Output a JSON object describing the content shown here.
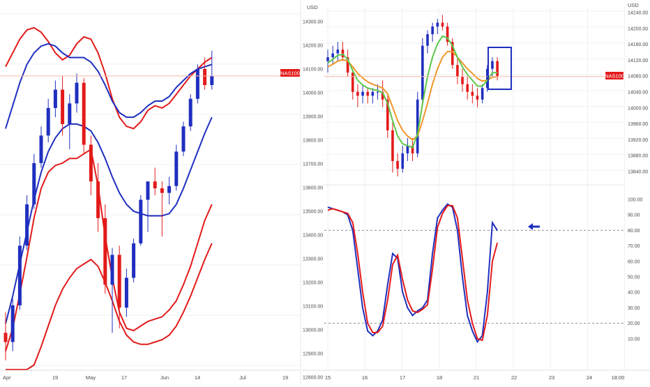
{
  "colors": {
    "up": "#1f2fbf",
    "down": "#e31a1a",
    "band_blue": "#1f2fbf",
    "band_red": "#e31a1a",
    "ema_orange": "#f0962a",
    "ema_green": "#5cc84a",
    "price_line": "#f7b9a6",
    "marker_bg": "#e31a1a",
    "rect": "#1f2fbf",
    "grid": "#eef0f3",
    "axis_text": "#4a4a4a"
  },
  "left_chart": {
    "price_label": "NAS100",
    "x_ticks": [
      "Apr",
      "19",
      "May",
      "17",
      "Jun",
      "14",
      "Jul",
      "19"
    ]
  },
  "chart_data": [
    {
      "type": "candlestick",
      "title": "",
      "xlabel": "",
      "ylabel": "",
      "x_ticks": [
        "Apr",
        "19",
        "May",
        "17",
        "Jun",
        "14",
        "Jul",
        "19"
      ],
      "ylim": [
        12800,
        14350
      ],
      "current_price": 14080,
      "current_price_label": "NAS100",
      "candles": [
        {
          "o": 12960,
          "h": 13050,
          "l": 12840,
          "c": 12920
        },
        {
          "o": 12920,
          "h": 13110,
          "l": 12880,
          "c": 13080
        },
        {
          "o": 13080,
          "h": 13380,
          "l": 13060,
          "c": 13340
        },
        {
          "o": 13340,
          "h": 13560,
          "l": 13320,
          "c": 13520
        },
        {
          "o": 13520,
          "h": 13740,
          "l": 13500,
          "c": 13700
        },
        {
          "o": 13700,
          "h": 13860,
          "l": 13680,
          "c": 13820
        },
        {
          "o": 13820,
          "h": 13980,
          "l": 13790,
          "c": 13940
        },
        {
          "o": 13940,
          "h": 14060,
          "l": 13900,
          "c": 14020
        },
        {
          "o": 14020,
          "h": 14080,
          "l": 13820,
          "c": 13870
        },
        {
          "o": 13870,
          "h": 14000,
          "l": 13760,
          "c": 13960
        },
        {
          "o": 13960,
          "h": 14090,
          "l": 13920,
          "c": 14050
        },
        {
          "o": 14050,
          "h": 14070,
          "l": 13740,
          "c": 13780
        },
        {
          "o": 13780,
          "h": 13820,
          "l": 13560,
          "c": 13620
        },
        {
          "o": 13620,
          "h": 13700,
          "l": 13400,
          "c": 13460
        },
        {
          "o": 13460,
          "h": 13520,
          "l": 13130,
          "c": 13170
        },
        {
          "o": 13170,
          "h": 13330,
          "l": 12960,
          "c": 13300
        },
        {
          "o": 13300,
          "h": 13340,
          "l": 12980,
          "c": 13070
        },
        {
          "o": 13070,
          "h": 13240,
          "l": 13030,
          "c": 13200
        },
        {
          "o": 13200,
          "h": 13370,
          "l": 13180,
          "c": 13350
        },
        {
          "o": 13350,
          "h": 13560,
          "l": 13340,
          "c": 13540
        },
        {
          "o": 13540,
          "h": 13620,
          "l": 13400,
          "c": 13620
        },
        {
          "o": 13620,
          "h": 13680,
          "l": 13560,
          "c": 13590
        },
        {
          "o": 13590,
          "h": 13620,
          "l": 13380,
          "c": 13570
        },
        {
          "o": 13570,
          "h": 13640,
          "l": 13520,
          "c": 13600
        },
        {
          "o": 13600,
          "h": 13780,
          "l": 13580,
          "c": 13750
        },
        {
          "o": 13750,
          "h": 13880,
          "l": 13730,
          "c": 13860
        },
        {
          "o": 13860,
          "h": 14000,
          "l": 13840,
          "c": 13980
        },
        {
          "o": 13980,
          "h": 14130,
          "l": 13960,
          "c": 14110
        },
        {
          "o": 14110,
          "h": 14160,
          "l": 14020,
          "c": 14040
        },
        {
          "o": 14040,
          "h": 14190,
          "l": 14020,
          "c": 14080
        }
      ],
      "bands": {
        "outer_upper": [
          14120,
          14180,
          14240,
          14280,
          14290,
          14270,
          14230,
          14180,
          14150,
          14170,
          14220,
          14250,
          14240,
          14180,
          14090,
          13980,
          13900,
          13860,
          13850,
          13880,
          13930,
          13950,
          13940,
          13960,
          14000,
          14040,
          14080,
          14110,
          14140,
          14160
        ],
        "middle": [
          13000,
          13120,
          13260,
          13400,
          13540,
          13660,
          13750,
          13810,
          13850,
          13870,
          13870,
          13860,
          13840,
          13790,
          13720,
          13640,
          13570,
          13520,
          13490,
          13480,
          13470,
          13470,
          13470,
          13480,
          13520,
          13590,
          13670,
          13750,
          13830,
          13900
        ],
        "outer_lower": [
          12880,
          12980,
          13130,
          13290,
          13460,
          13590,
          13660,
          13690,
          13700,
          13720,
          13720,
          13740,
          13760,
          13600,
          13380,
          13200,
          13050,
          12980,
          12970,
          12990,
          13010,
          13020,
          13030,
          13060,
          13100,
          13170,
          13250,
          13350,
          13450,
          13520
        ],
        "inner_upper": [
          13850,
          13950,
          14050,
          14130,
          14180,
          14210,
          14220,
          14210,
          14180,
          14160,
          14160,
          14160,
          14140,
          14100,
          14040,
          13970,
          13920,
          13900,
          13900,
          13920,
          13950,
          13970,
          13970,
          13990,
          14030,
          14060,
          14090,
          14110,
          14120,
          14130
        ],
        "inner_lower": [
          12800,
          12800,
          12800,
          12800,
          12820,
          12900,
          12990,
          13080,
          13150,
          13200,
          13240,
          13260,
          13280,
          13250,
          13180,
          13100,
          13010,
          12950,
          12920,
          12910,
          12910,
          12920,
          12930,
          12950,
          12990,
          13050,
          13120,
          13200,
          13280,
          13350
        ]
      }
    },
    {
      "type": "candlestick",
      "title": "",
      "ylabel": "USD",
      "x_ticks": [
        "15",
        "16",
        "17",
        "18",
        "21",
        "22",
        "23",
        "24",
        "18:00"
      ],
      "y_ticks_left": [
        "14300.00",
        "14200.00",
        "14100.00",
        "14000.00",
        "13900.00",
        "13800.00",
        "13700.00",
        "13600.00",
        "13500.00",
        "13400.00",
        "13300.00",
        "13200.00",
        "13100.00",
        "13000.00",
        "12900.00",
        "12800.00"
      ],
      "y_ticks_right": [
        "14240.00",
        "14200.00",
        "14160.00",
        "14120.00",
        "14080.00",
        "14040.00",
        "14000.00",
        "13960.00",
        "13920.00",
        "13880.00",
        "13840.00"
      ],
      "ylim": [
        13820,
        14250
      ],
      "current_price_label": "NAS100",
      "candles": [
        {
          "o": 14120,
          "h": 14150,
          "l": 14090,
          "c": 14130
        },
        {
          "o": 14130,
          "h": 14160,
          "l": 14110,
          "c": 14140
        },
        {
          "o": 14140,
          "h": 14170,
          "l": 14120,
          "c": 14150
        },
        {
          "o": 14150,
          "h": 14170,
          "l": 14120,
          "c": 14130
        },
        {
          "o": 14130,
          "h": 14150,
          "l": 14080,
          "c": 14090
        },
        {
          "o": 14090,
          "h": 14100,
          "l": 14020,
          "c": 14040
        },
        {
          "o": 14040,
          "h": 14060,
          "l": 14000,
          "c": 14030
        },
        {
          "o": 14030,
          "h": 14060,
          "l": 14010,
          "c": 14040
        },
        {
          "o": 14040,
          "h": 14050,
          "l": 14010,
          "c": 14030
        },
        {
          "o": 14030,
          "h": 14050,
          "l": 14010,
          "c": 14040
        },
        {
          "o": 14040,
          "h": 14060,
          "l": 14020,
          "c": 14040
        },
        {
          "o": 14040,
          "h": 14070,
          "l": 14000,
          "c": 14020
        },
        {
          "o": 14020,
          "h": 14030,
          "l": 13920,
          "c": 13940
        },
        {
          "o": 13940,
          "h": 13960,
          "l": 13830,
          "c": 13860
        },
        {
          "o": 13860,
          "h": 13880,
          "l": 13820,
          "c": 13840
        },
        {
          "o": 13840,
          "h": 13900,
          "l": 13830,
          "c": 13880
        },
        {
          "o": 13880,
          "h": 13920,
          "l": 13860,
          "c": 13900
        },
        {
          "o": 13900,
          "h": 13920,
          "l": 13860,
          "c": 13880
        },
        {
          "o": 13880,
          "h": 14040,
          "l": 13870,
          "c": 14020
        },
        {
          "o": 14020,
          "h": 14180,
          "l": 14010,
          "c": 14160
        },
        {
          "o": 14160,
          "h": 14200,
          "l": 14140,
          "c": 14190
        },
        {
          "o": 14190,
          "h": 14220,
          "l": 14170,
          "c": 14210
        },
        {
          "o": 14210,
          "h": 14230,
          "l": 14190,
          "c": 14220
        },
        {
          "o": 14220,
          "h": 14240,
          "l": 14200,
          "c": 14210
        },
        {
          "o": 14210,
          "h": 14220,
          "l": 14160,
          "c": 14170
        },
        {
          "o": 14170,
          "h": 14180,
          "l": 14100,
          "c": 14110
        },
        {
          "o": 14110,
          "h": 14130,
          "l": 14060,
          "c": 14080
        },
        {
          "o": 14080,
          "h": 14100,
          "l": 14040,
          "c": 14060
        },
        {
          "o": 14060,
          "h": 14080,
          "l": 14020,
          "c": 14040
        },
        {
          "o": 14040,
          "h": 14060,
          "l": 14010,
          "c": 14030
        },
        {
          "o": 14030,
          "h": 14050,
          "l": 14000,
          "c": 14020
        },
        {
          "o": 14020,
          "h": 14060,
          "l": 14010,
          "c": 14050
        },
        {
          "o": 14050,
          "h": 14110,
          "l": 14040,
          "c": 14100
        },
        {
          "o": 14100,
          "h": 14130,
          "l": 14080,
          "c": 14120
        },
        {
          "o": 14120,
          "h": 14130,
          "l": 14070,
          "c": 14080
        }
      ],
      "ema_fast": [
        14115,
        14125,
        14135,
        14138,
        14125,
        14095,
        14070,
        14058,
        14050,
        14046,
        14044,
        14038,
        14010,
        13965,
        13925,
        13905,
        13900,
        13895,
        13930,
        14010,
        14080,
        14130,
        14165,
        14185,
        14180,
        14160,
        14130,
        14105,
        14085,
        14070,
        14055,
        14055,
        14070,
        14090,
        14090
      ],
      "ema_slow": [
        14105,
        14112,
        14120,
        14124,
        14120,
        14105,
        14088,
        14076,
        14066,
        14060,
        14055,
        14050,
        14035,
        14000,
        13965,
        13940,
        13925,
        13915,
        13925,
        13965,
        14010,
        14060,
        14100,
        14130,
        14145,
        14145,
        14130,
        14115,
        14100,
        14088,
        14075,
        14068,
        14070,
        14078,
        14080
      ]
    },
    {
      "type": "line",
      "title": "",
      "ylim": [
        0,
        100
      ],
      "y_ticks": [
        "100.00",
        "90.00",
        "80.00",
        "70.00",
        "60.00",
        "50.00",
        "40.00",
        "30.00",
        "20.00",
        "10.00"
      ],
      "reference_lines": [
        80,
        20
      ],
      "series": [
        {
          "values": [
            95,
            94,
            93,
            92,
            90,
            80,
            55,
            30,
            15,
            12,
            15,
            22,
            45,
            65,
            62,
            40,
            30,
            25,
            28,
            30,
            35,
            65,
            88,
            93,
            97,
            95,
            80,
            50,
            25,
            15,
            8,
            12,
            40,
            85,
            80
          ]
        },
        {
          "values": [
            93,
            94,
            93,
            92,
            91,
            85,
            65,
            40,
            20,
            14,
            14,
            18,
            35,
            58,
            64,
            48,
            35,
            28,
            27,
            29,
            32,
            55,
            82,
            91,
            96,
            96,
            88,
            62,
            35,
            20,
            10,
            9,
            25,
            60,
            72
          ]
        }
      ]
    }
  ]
}
